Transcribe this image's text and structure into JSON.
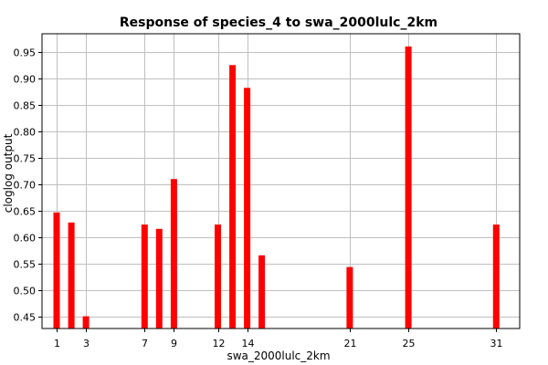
{
  "chart_data": {
    "type": "bar",
    "title": "Response of species_4 to swa_2000lulc_2km",
    "xlabel": "swa_2000lulc_2km",
    "ylabel": "cloglog output",
    "x": [
      1,
      2,
      3,
      7,
      8,
      9,
      12,
      13,
      14,
      15,
      21,
      25,
      31
    ],
    "values": [
      0.647,
      0.628,
      0.451,
      0.624,
      0.616,
      0.71,
      0.624,
      0.925,
      0.882,
      0.566,
      0.544,
      0.96,
      0.624
    ],
    "x_tick_labels": [
      "1",
      "3",
      "7",
      "9",
      "12",
      "14",
      "21",
      "25",
      "31"
    ],
    "x_tick_values": [
      1,
      3,
      7,
      9,
      12,
      14,
      21,
      25,
      31
    ],
    "y_ticks": [
      "0.45",
      "0.50",
      "0.55",
      "0.60",
      "0.65",
      "0.70",
      "0.75",
      "0.80",
      "0.85",
      "0.90",
      "0.95"
    ],
    "xlim": [
      0,
      32.6
    ],
    "ylim": [
      0.428,
      0.984
    ],
    "grid": true,
    "bar_color": "#ff0000"
  }
}
